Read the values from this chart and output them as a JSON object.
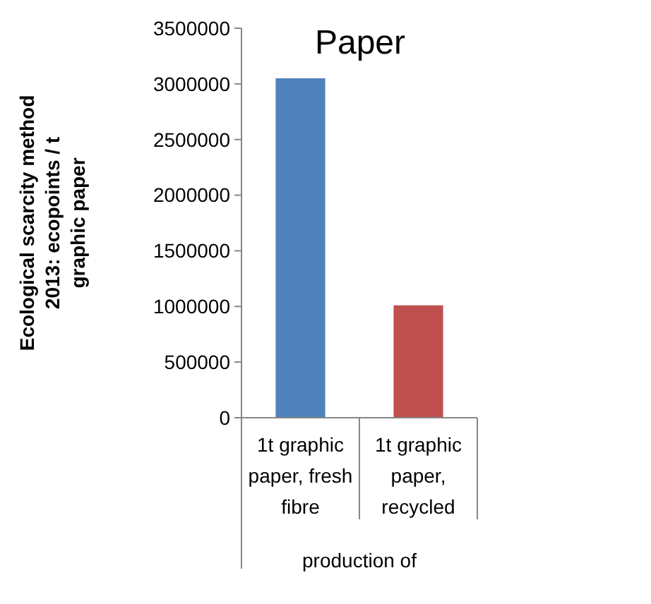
{
  "chart_data": {
    "type": "bar",
    "title": "Paper",
    "ylabel": "Ecological scarcity method 2013: ecopoints / t graphic paper",
    "xlabel": "production of",
    "categories": [
      "1t graphic paper, fresh fibre",
      "1t graphic paper, recycled"
    ],
    "values": [
      3050000,
      1010000
    ],
    "colors": [
      "#4f81bd",
      "#c0504d"
    ],
    "ylim": [
      0,
      3500000
    ],
    "yticks": [
      0,
      500000,
      1000000,
      1500000,
      2000000,
      2500000,
      3000000,
      3500000
    ],
    "grid": false,
    "legend": false
  }
}
